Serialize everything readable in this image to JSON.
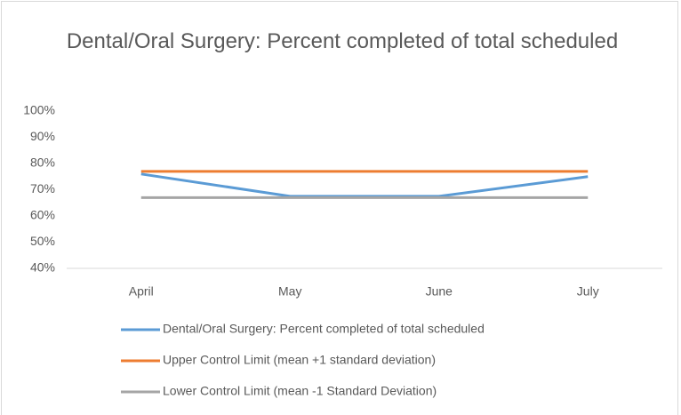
{
  "chart_data": {
    "type": "line",
    "title": "Dental/Oral Surgery: Percent completed of total scheduled",
    "categories": [
      "April",
      "May",
      "June",
      "July"
    ],
    "series": [
      {
        "name": "Dental/Oral Surgery: Percent completed of total scheduled",
        "color": "#5b9bd5",
        "values": [
          76,
          67.5,
          67.5,
          75
        ]
      },
      {
        "name": "Upper Control Limit (mean +1 standard deviation)",
        "color": "#ed7d31",
        "values": [
          77,
          77,
          77,
          77
        ]
      },
      {
        "name": "Lower Control Limit (mean -1 Standard Deviation)",
        "color": "#a5a5a5",
        "values": [
          67,
          67,
          67,
          67
        ]
      }
    ],
    "ylim": [
      40,
      100
    ],
    "yticks": [
      {
        "value": 40,
        "label": "40%"
      },
      {
        "value": 50,
        "label": "50%"
      },
      {
        "value": 60,
        "label": "60%"
      },
      {
        "value": 70,
        "label": "70%"
      },
      {
        "value": 80,
        "label": "80%"
      },
      {
        "value": 90,
        "label": "90%"
      },
      {
        "value": 100,
        "label": "100%"
      }
    ],
    "grid": false,
    "legend": "bottom"
  }
}
